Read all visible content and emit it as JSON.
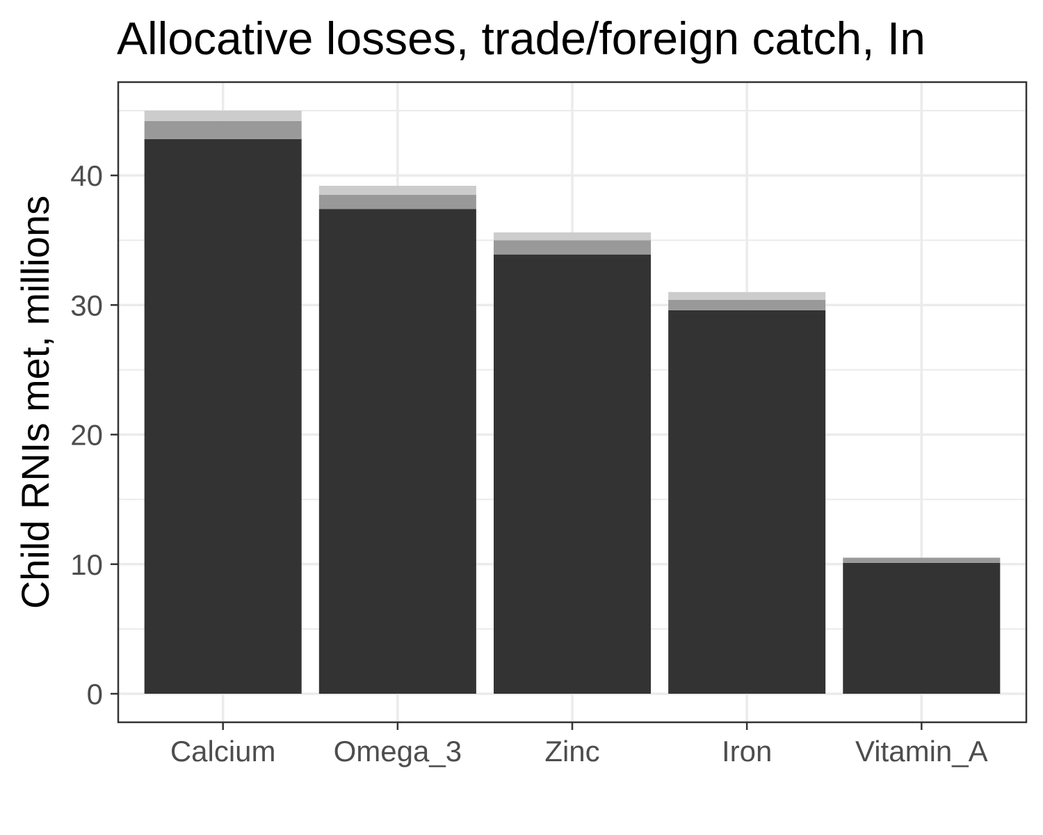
{
  "chart_data": {
    "type": "bar",
    "stacked": true,
    "title": "Allocative losses, trade/foreign catch, In",
    "xlabel": "",
    "ylabel": "Child RNIs met, millions",
    "categories": [
      "Calcium",
      "Omega_3",
      "Zinc",
      "Iron",
      "Vitamin_A"
    ],
    "series": [
      {
        "values": [
          42.8,
          37.4,
          33.9,
          29.6,
          10.1
        ],
        "color": "#333333"
      },
      {
        "values": [
          1.4,
          1.1,
          1.1,
          0.8,
          0.4
        ],
        "color": "#999999"
      },
      {
        "values": [
          0.8,
          0.7,
          0.6,
          0.6,
          0.0
        ],
        "color": "#cccccc"
      }
    ],
    "y_ticks": [
      0,
      10,
      20,
      30,
      40
    ],
    "ylim": [
      -2.2,
      47.2
    ],
    "grid": true,
    "legend": "none",
    "theme": "bw"
  }
}
